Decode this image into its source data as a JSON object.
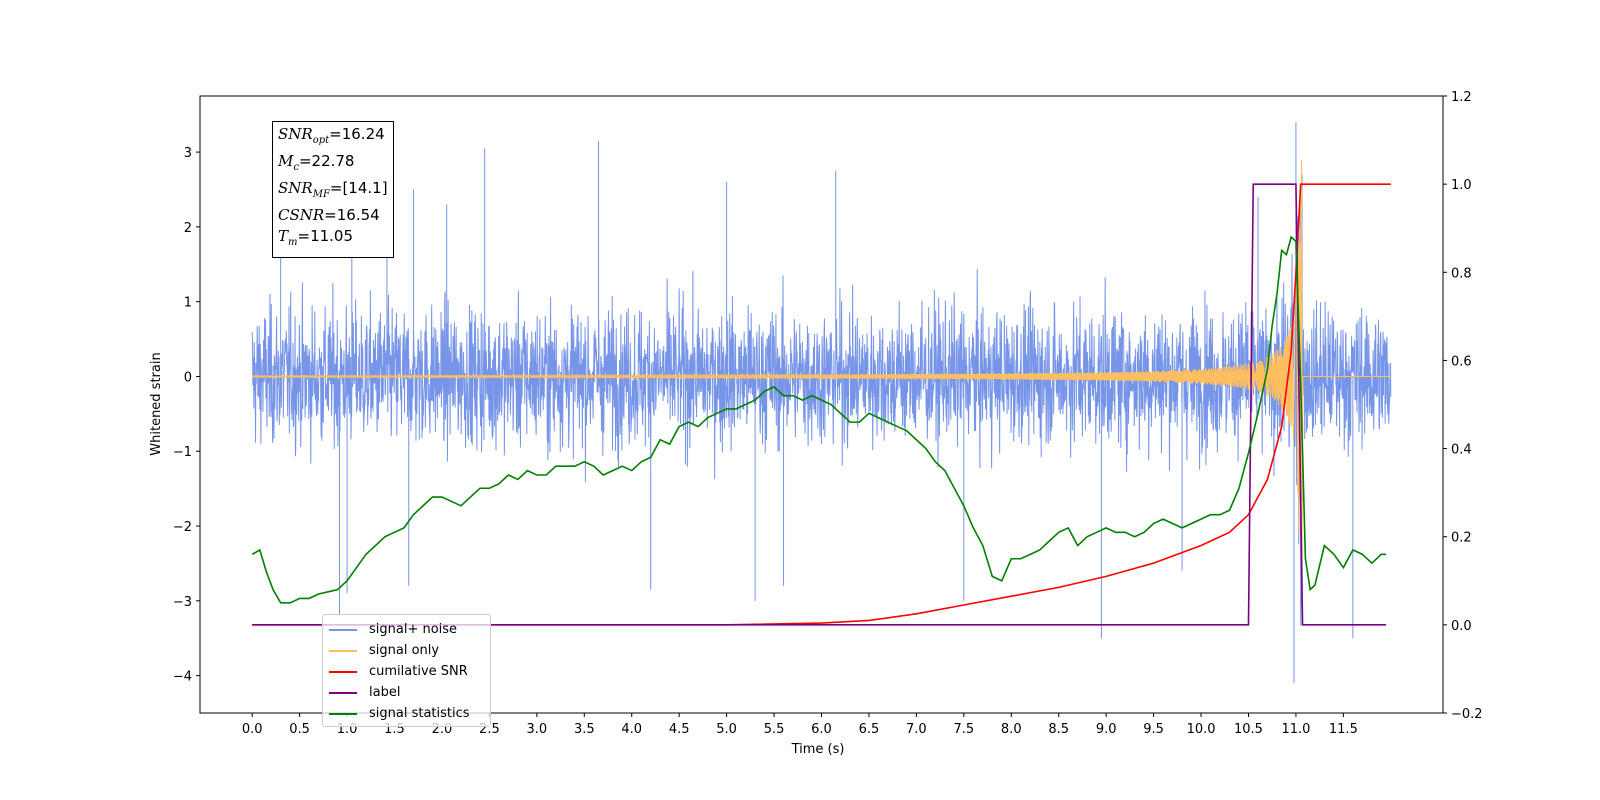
{
  "chart_data": {
    "type": "line",
    "xlabel": "Time (s)",
    "ylabel": "Whitened strain",
    "xlim": [
      -0.55,
      12.55
    ],
    "ylim": [
      -4.5,
      3.75
    ],
    "y2lim": [
      -0.2,
      1.2
    ],
    "x_ticks": [
      "0.0",
      "0.5",
      "1.0",
      "1.5",
      "2.0",
      "2.5",
      "3.0",
      "3.5",
      "4.0",
      "4.5",
      "5.0",
      "5.5",
      "6.0",
      "6.5",
      "7.0",
      "7.5",
      "8.0",
      "8.5",
      "9.0",
      "9.5",
      "10.0",
      "10.5",
      "11.0",
      "11.5"
    ],
    "y_ticks": [
      "3",
      "2",
      "1",
      "0",
      "−1",
      "−2",
      "−3",
      "−4"
    ],
    "y2_ticks": [
      "1.2",
      "1.0",
      "0.8",
      "0.6",
      "0.4",
      "0.2",
      "0.0",
      "−0.2"
    ],
    "annotation": {
      "snr_opt": "=16.24",
      "mc": "=22.78",
      "snr_mf": "=[14.1]",
      "csnr": "=16.54",
      "tm": "=11.05",
      "snr_label": "SNR",
      "m_label": "M",
      "csnr_label": "CSNR",
      "t_label": "T",
      "opt_sub": "opt",
      "c_sub": "c",
      "mf_sub": "MF",
      "m_sub": "m"
    },
    "legend": {
      "placement": "lower-left",
      "entries": [
        "signal+ noise",
        "signal only",
        "cumilative SNR",
        "label",
        "signal statistics"
      ]
    },
    "series": [
      {
        "name": "signal+ noise",
        "axis": "left",
        "color": "#7694e8",
        "x_range": [
          0.0,
          12.0
        ],
        "envelope_typical": [
          -1.6,
          1.6
        ],
        "spikes": [
          {
            "x": 0.3,
            "y": 2.3
          },
          {
            "x": 0.92,
            "y": -3.2
          },
          {
            "x": 1.0,
            "y": -2.9
          },
          {
            "x": 1.05,
            "y": 2.75
          },
          {
            "x": 1.42,
            "y": 2.8
          },
          {
            "x": 1.65,
            "y": -2.8
          },
          {
            "x": 1.7,
            "y": 2.5
          },
          {
            "x": 2.05,
            "y": 2.3
          },
          {
            "x": 2.45,
            "y": 3.05
          },
          {
            "x": 3.65,
            "y": 3.15
          },
          {
            "x": 4.2,
            "y": -2.85
          },
          {
            "x": 5.0,
            "y": 2.6
          },
          {
            "x": 5.3,
            "y": -3.0
          },
          {
            "x": 5.6,
            "y": -2.8
          },
          {
            "x": 6.15,
            "y": 2.75
          },
          {
            "x": 7.5,
            "y": -3.0
          },
          {
            "x": 8.95,
            "y": -3.5
          },
          {
            "x": 9.8,
            "y": -2.6
          },
          {
            "x": 10.6,
            "y": 2.4
          },
          {
            "x": 11.0,
            "y": 3.4
          },
          {
            "x": 10.98,
            "y": -4.1
          },
          {
            "x": 11.6,
            "y": -3.5
          }
        ]
      },
      {
        "name": "signal only",
        "axis": "left",
        "color": "#ffbf60",
        "x_range": [
          0.0,
          12.0
        ],
        "merger_time": 11.05,
        "peak_amplitude": 2.9
      },
      {
        "name": "cumilative SNR",
        "axis": "right",
        "color": "#ff0000",
        "points": [
          [
            0.0,
            0.0
          ],
          [
            4.0,
            0.0
          ],
          [
            5.0,
            0.0
          ],
          [
            6.0,
            0.004
          ],
          [
            6.5,
            0.01
          ],
          [
            7.0,
            0.025
          ],
          [
            7.5,
            0.045
          ],
          [
            8.0,
            0.065
          ],
          [
            8.5,
            0.085
          ],
          [
            9.0,
            0.11
          ],
          [
            9.5,
            0.14
          ],
          [
            10.0,
            0.18
          ],
          [
            10.3,
            0.21
          ],
          [
            10.5,
            0.25
          ],
          [
            10.7,
            0.33
          ],
          [
            10.85,
            0.45
          ],
          [
            10.95,
            0.62
          ],
          [
            11.0,
            0.8
          ],
          [
            11.05,
            1.0
          ],
          [
            11.1,
            1.0
          ],
          [
            12.0,
            1.0
          ]
        ]
      },
      {
        "name": "label",
        "axis": "right",
        "color": "#7b0080",
        "points": [
          [
            0.0,
            0.0
          ],
          [
            10.5,
            0.0
          ],
          [
            10.55,
            1.0
          ],
          [
            11.0,
            1.0
          ],
          [
            11.07,
            0.0
          ],
          [
            11.95,
            0.0
          ]
        ]
      },
      {
        "name": "signal statistics",
        "axis": "right",
        "color": "#008000",
        "points": [
          [
            0.0,
            0.16
          ],
          [
            0.08,
            0.17
          ],
          [
            0.15,
            0.12
          ],
          [
            0.22,
            0.08
          ],
          [
            0.3,
            0.05
          ],
          [
            0.4,
            0.05
          ],
          [
            0.5,
            0.06
          ],
          [
            0.6,
            0.06
          ],
          [
            0.7,
            0.07
          ],
          [
            0.8,
            0.075
          ],
          [
            0.9,
            0.08
          ],
          [
            1.0,
            0.1
          ],
          [
            1.1,
            0.13
          ],
          [
            1.2,
            0.16
          ],
          [
            1.3,
            0.18
          ],
          [
            1.4,
            0.2
          ],
          [
            1.5,
            0.21
          ],
          [
            1.6,
            0.22
          ],
          [
            1.7,
            0.25
          ],
          [
            1.8,
            0.27
          ],
          [
            1.9,
            0.29
          ],
          [
            2.0,
            0.29
          ],
          [
            2.1,
            0.28
          ],
          [
            2.2,
            0.27
          ],
          [
            2.3,
            0.29
          ],
          [
            2.4,
            0.31
          ],
          [
            2.5,
            0.31
          ],
          [
            2.6,
            0.32
          ],
          [
            2.7,
            0.34
          ],
          [
            2.8,
            0.33
          ],
          [
            2.9,
            0.35
          ],
          [
            3.0,
            0.34
          ],
          [
            3.1,
            0.34
          ],
          [
            3.2,
            0.36
          ],
          [
            3.3,
            0.36
          ],
          [
            3.4,
            0.36
          ],
          [
            3.5,
            0.37
          ],
          [
            3.6,
            0.36
          ],
          [
            3.7,
            0.34
          ],
          [
            3.8,
            0.35
          ],
          [
            3.9,
            0.36
          ],
          [
            4.0,
            0.35
          ],
          [
            4.1,
            0.37
          ],
          [
            4.2,
            0.38
          ],
          [
            4.3,
            0.42
          ],
          [
            4.4,
            0.41
          ],
          [
            4.5,
            0.45
          ],
          [
            4.6,
            0.46
          ],
          [
            4.7,
            0.45
          ],
          [
            4.8,
            0.47
          ],
          [
            4.9,
            0.48
          ],
          [
            5.0,
            0.49
          ],
          [
            5.1,
            0.49
          ],
          [
            5.2,
            0.5
          ],
          [
            5.3,
            0.51
          ],
          [
            5.4,
            0.53
          ],
          [
            5.5,
            0.54
          ],
          [
            5.6,
            0.52
          ],
          [
            5.7,
            0.52
          ],
          [
            5.8,
            0.51
          ],
          [
            5.9,
            0.52
          ],
          [
            6.0,
            0.51
          ],
          [
            6.1,
            0.5
          ],
          [
            6.2,
            0.48
          ],
          [
            6.3,
            0.46
          ],
          [
            6.4,
            0.46
          ],
          [
            6.5,
            0.48
          ],
          [
            6.6,
            0.47
          ],
          [
            6.7,
            0.46
          ],
          [
            6.8,
            0.45
          ],
          [
            6.9,
            0.44
          ],
          [
            7.0,
            0.42
          ],
          [
            7.1,
            0.4
          ],
          [
            7.2,
            0.37
          ],
          [
            7.3,
            0.35
          ],
          [
            7.4,
            0.31
          ],
          [
            7.5,
            0.27
          ],
          [
            7.6,
            0.22
          ],
          [
            7.7,
            0.18
          ],
          [
            7.8,
            0.11
          ],
          [
            7.9,
            0.1
          ],
          [
            8.0,
            0.15
          ],
          [
            8.1,
            0.15
          ],
          [
            8.2,
            0.16
          ],
          [
            8.3,
            0.17
          ],
          [
            8.4,
            0.19
          ],
          [
            8.5,
            0.21
          ],
          [
            8.6,
            0.22
          ],
          [
            8.7,
            0.18
          ],
          [
            8.8,
            0.2
          ],
          [
            8.9,
            0.21
          ],
          [
            9.0,
            0.22
          ],
          [
            9.1,
            0.21
          ],
          [
            9.2,
            0.21
          ],
          [
            9.3,
            0.2
          ],
          [
            9.4,
            0.21
          ],
          [
            9.5,
            0.23
          ],
          [
            9.6,
            0.24
          ],
          [
            9.7,
            0.23
          ],
          [
            9.8,
            0.22
          ],
          [
            9.9,
            0.23
          ],
          [
            10.0,
            0.24
          ],
          [
            10.1,
            0.25
          ],
          [
            10.2,
            0.25
          ],
          [
            10.3,
            0.26
          ],
          [
            10.4,
            0.31
          ],
          [
            10.5,
            0.39
          ],
          [
            10.6,
            0.48
          ],
          [
            10.7,
            0.58
          ],
          [
            10.75,
            0.68
          ],
          [
            10.8,
            0.75
          ],
          [
            10.85,
            0.85
          ],
          [
            10.9,
            0.84
          ],
          [
            10.95,
            0.88
          ],
          [
            11.0,
            0.87
          ],
          [
            11.05,
            0.55
          ],
          [
            11.1,
            0.15
          ],
          [
            11.15,
            0.08
          ],
          [
            11.2,
            0.09
          ],
          [
            11.3,
            0.18
          ],
          [
            11.4,
            0.16
          ],
          [
            11.5,
            0.13
          ],
          [
            11.6,
            0.17
          ],
          [
            11.7,
            0.16
          ],
          [
            11.8,
            0.14
          ],
          [
            11.9,
            0.16
          ],
          [
            11.95,
            0.16
          ]
        ]
      }
    ]
  }
}
